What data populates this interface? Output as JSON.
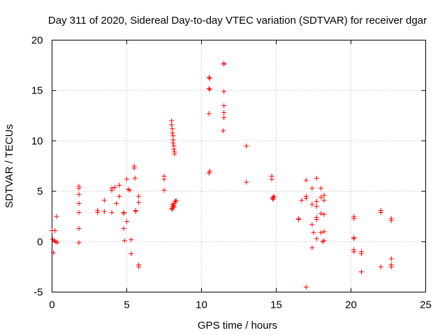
{
  "chart_data": {
    "type": "scatter",
    "title": "Day 311 of 2020, Sidereal Day-to-day VTEC variation (SDTVAR) for receiver dgar",
    "xlabel": "GPS time / hours",
    "ylabel": "SDTVAR / TECUs",
    "xlim": [
      0,
      25
    ],
    "ylim": [
      -5,
      20
    ],
    "xticks": [
      "0",
      "5",
      "10",
      "15",
      "20",
      "25"
    ],
    "yticks": [
      "-5",
      "0",
      "5",
      "10",
      "15",
      "20"
    ],
    "grid": true,
    "marker": "+",
    "color": "#ff0000",
    "series": [
      {
        "name": "SDTVAR",
        "points": [
          [
            0.0,
            1.1
          ],
          [
            0.05,
            0.2
          ],
          [
            0.1,
            -1.1
          ],
          [
            0.15,
            0.1
          ],
          [
            0.2,
            1.1
          ],
          [
            0.25,
            0.0
          ],
          [
            0.3,
            2.5
          ],
          [
            0.35,
            -0.1
          ],
          [
            1.8,
            5.5
          ],
          [
            1.8,
            5.3
          ],
          [
            1.8,
            4.7
          ],
          [
            1.8,
            3.8
          ],
          [
            1.8,
            2.9
          ],
          [
            1.8,
            1.3
          ],
          [
            1.8,
            -0.1
          ],
          [
            3.05,
            3.1
          ],
          [
            3.05,
            2.9
          ],
          [
            3.5,
            4.1
          ],
          [
            3.5,
            3.0
          ],
          [
            4.0,
            5.3
          ],
          [
            4.0,
            5.1
          ],
          [
            4.0,
            2.9
          ],
          [
            4.2,
            5.4
          ],
          [
            4.3,
            3.8
          ],
          [
            4.5,
            5.6
          ],
          [
            4.5,
            4.5
          ],
          [
            4.8,
            2.9
          ],
          [
            4.8,
            2.8
          ],
          [
            4.8,
            1.3
          ],
          [
            4.85,
            0.1
          ],
          [
            5.0,
            6.2
          ],
          [
            5.0,
            2.0
          ],
          [
            5.1,
            5.2
          ],
          [
            5.2,
            5.1
          ],
          [
            5.3,
            0.2
          ],
          [
            5.3,
            -1.2
          ],
          [
            5.5,
            7.5
          ],
          [
            5.5,
            7.3
          ],
          [
            5.55,
            6.3
          ],
          [
            5.6,
            3.1
          ],
          [
            5.6,
            3.0
          ],
          [
            5.8,
            4.5
          ],
          [
            5.8,
            3.9
          ],
          [
            5.8,
            -2.3
          ],
          [
            5.8,
            -2.5
          ],
          [
            7.5,
            6.5
          ],
          [
            7.5,
            6.2
          ],
          [
            7.5,
            5.1
          ],
          [
            8.0,
            12.0
          ],
          [
            8.0,
            11.6
          ],
          [
            8.05,
            11.2
          ],
          [
            8.05,
            10.8
          ],
          [
            8.1,
            10.5
          ],
          [
            8.1,
            10.1
          ],
          [
            8.1,
            9.8
          ],
          [
            8.15,
            9.5
          ],
          [
            8.15,
            9.2
          ],
          [
            8.2,
            8.9
          ],
          [
            8.2,
            8.7
          ],
          [
            8.0,
            3.3
          ],
          [
            8.05,
            3.2
          ],
          [
            8.1,
            3.5
          ],
          [
            8.15,
            3.6
          ],
          [
            8.2,
            3.8
          ],
          [
            8.25,
            4.0
          ],
          [
            8.3,
            4.1
          ],
          [
            8.05,
            3.7
          ],
          [
            8.15,
            3.4
          ],
          [
            10.5,
            16.3
          ],
          [
            10.55,
            16.2
          ],
          [
            10.5,
            15.2
          ],
          [
            10.55,
            15.1
          ],
          [
            10.5,
            12.7
          ],
          [
            10.55,
            7.0
          ],
          [
            10.5,
            6.8
          ],
          [
            11.5,
            17.7
          ],
          [
            11.5,
            17.6
          ],
          [
            11.5,
            14.9
          ],
          [
            11.5,
            13.5
          ],
          [
            11.5,
            12.8
          ],
          [
            11.5,
            12.3
          ],
          [
            11.45,
            11.0
          ],
          [
            13.0,
            9.5
          ],
          [
            13.0,
            5.9
          ],
          [
            14.7,
            6.5
          ],
          [
            14.7,
            6.2
          ],
          [
            14.8,
            4.4
          ],
          [
            14.75,
            4.3
          ],
          [
            14.8,
            4.2
          ],
          [
            14.85,
            4.5
          ],
          [
            16.5,
            2.3
          ],
          [
            16.5,
            2.2
          ],
          [
            16.7,
            4.1
          ],
          [
            17.0,
            6.1
          ],
          [
            17.0,
            4.5
          ],
          [
            17.0,
            4.3
          ],
          [
            17.0,
            -4.5
          ],
          [
            17.4,
            5.3
          ],
          [
            17.4,
            3.7
          ],
          [
            17.4,
            1.7
          ],
          [
            17.4,
            -0.6
          ],
          [
            17.5,
            0.9
          ],
          [
            17.7,
            6.3
          ],
          [
            17.7,
            4.0
          ],
          [
            17.7,
            3.5
          ],
          [
            17.7,
            2.4
          ],
          [
            17.7,
            2.2
          ],
          [
            17.7,
            0.3
          ],
          [
            18.0,
            5.3
          ],
          [
            18.0,
            4.4
          ],
          [
            18.0,
            2.8
          ],
          [
            18.0,
            0.9
          ],
          [
            18.1,
            0.0
          ],
          [
            18.2,
            4.6
          ],
          [
            18.2,
            4.1
          ],
          [
            18.2,
            2.7
          ],
          [
            18.2,
            1.0
          ],
          [
            18.2,
            0.1
          ],
          [
            20.2,
            2.5
          ],
          [
            20.2,
            2.3
          ],
          [
            20.2,
            0.4
          ],
          [
            20.2,
            0.3
          ],
          [
            20.2,
            -0.8
          ],
          [
            20.2,
            -1.0
          ],
          [
            20.7,
            -1.0
          ],
          [
            20.7,
            -1.2
          ],
          [
            20.7,
            -3.0
          ],
          [
            22.0,
            3.1
          ],
          [
            22.0,
            2.9
          ],
          [
            22.0,
            -2.5
          ],
          [
            22.7,
            2.3
          ],
          [
            22.7,
            2.1
          ],
          [
            22.7,
            -1.7
          ],
          [
            22.7,
            -2.3
          ],
          [
            22.7,
            -2.5
          ]
        ]
      }
    ]
  }
}
